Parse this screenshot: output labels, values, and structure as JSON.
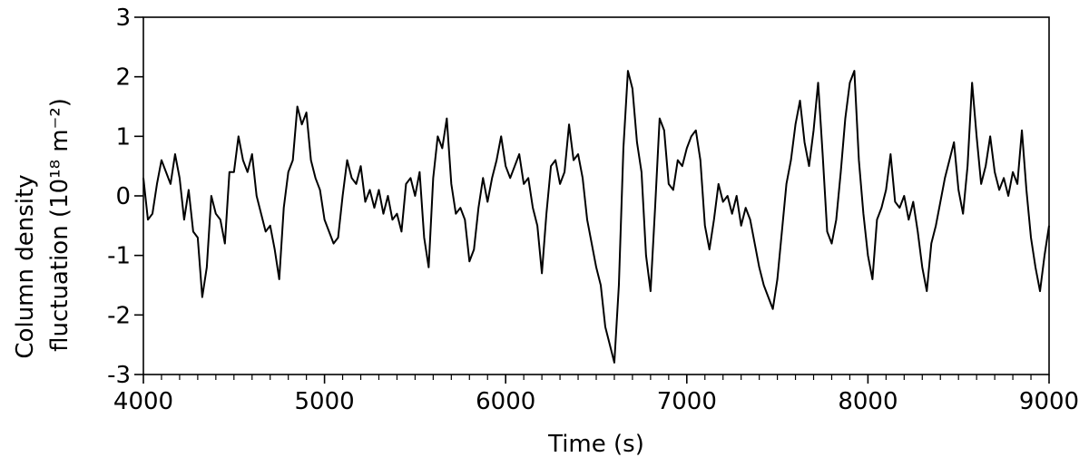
{
  "chart_data": {
    "type": "line",
    "x_label": "Time (s)",
    "y_label": [
      "Column density",
      "fluctuation (10¹⁸ m⁻²)"
    ],
    "xlim": [
      4000,
      9000
    ],
    "xticks": [
      4000,
      5000,
      6000,
      7000,
      8000,
      9000
    ],
    "xminorticks": [
      4100,
      4200,
      4300,
      4400,
      4500,
      4600,
      4700,
      4800,
      4900,
      5100,
      5200,
      5300,
      5400,
      5500,
      5600,
      5700,
      5800,
      5900,
      6100,
      6200,
      6300,
      6400,
      6500,
      6600,
      6700,
      6800,
      6900,
      7100,
      7200,
      7300,
      7400,
      7500,
      7600,
      7700,
      7800,
      7900,
      8100,
      8200,
      8300,
      8400,
      8500,
      8600,
      8700,
      8800,
      8900
    ],
    "ylim": [
      -3,
      3
    ],
    "yticks": [
      -3,
      -2,
      -1,
      0,
      1,
      2,
      3
    ],
    "grid": false,
    "series": [
      {
        "color": "#000000",
        "x": [
          4000,
          4025,
          4050,
          4075,
          4100,
          4125,
          4150,
          4175,
          4200,
          4225,
          4250,
          4275,
          4300,
          4325,
          4350,
          4375,
          4400,
          4425,
          4450,
          4475,
          4500,
          4525,
          4550,
          4575,
          4600,
          4625,
          4650,
          4675,
          4700,
          4725,
          4750,
          4775,
          4800,
          4825,
          4850,
          4875,
          4900,
          4925,
          4950,
          4975,
          5000,
          5025,
          5050,
          5075,
          5100,
          5125,
          5150,
          5175,
          5200,
          5225,
          5250,
          5275,
          5300,
          5325,
          5350,
          5375,
          5400,
          5425,
          5450,
          5475,
          5500,
          5525,
          5550,
          5575,
          5600,
          5625,
          5650,
          5675,
          5700,
          5725,
          5750,
          5775,
          5800,
          5825,
          5850,
          5875,
          5900,
          5925,
          5950,
          5975,
          6000,
          6025,
          6050,
          6075,
          6100,
          6125,
          6150,
          6175,
          6200,
          6225,
          6250,
          6275,
          6300,
          6325,
          6350,
          6375,
          6400,
          6425,
          6450,
          6475,
          6500,
          6525,
          6550,
          6575,
          6600,
          6625,
          6650,
          6675,
          6700,
          6725,
          6750,
          6775,
          6800,
          6825,
          6850,
          6875,
          6900,
          6925,
          6950,
          6975,
          7000,
          7025,
          7050,
          7075,
          7100,
          7125,
          7150,
          7175,
          7200,
          7225,
          7250,
          7275,
          7300,
          7325,
          7350,
          7375,
          7400,
          7425,
          7450,
          7475,
          7500,
          7525,
          7550,
          7575,
          7600,
          7625,
          7650,
          7675,
          7700,
          7725,
          7750,
          7775,
          7800,
          7825,
          7850,
          7875,
          7900,
          7925,
          7950,
          7975,
          8000,
          8025,
          8050,
          8075,
          8100,
          8125,
          8150,
          8175,
          8200,
          8225,
          8250,
          8275,
          8300,
          8325,
          8350,
          8375,
          8400,
          8425,
          8450,
          8475,
          8500,
          8525,
          8550,
          8575,
          8600,
          8625,
          8650,
          8675,
          8700,
          8725,
          8750,
          8775,
          8800,
          8825,
          8850,
          8875,
          8900,
          8925,
          8950,
          8975,
          9000
        ],
        "values": [
          0.3,
          -0.4,
          -0.3,
          0.2,
          0.6,
          0.4,
          0.2,
          0.7,
          0.3,
          -0.4,
          0.1,
          -0.6,
          -0.7,
          -1.7,
          -1.2,
          0.0,
          -0.3,
          -0.4,
          -0.8,
          0.4,
          0.4,
          1.0,
          0.6,
          0.4,
          0.7,
          0.0,
          -0.3,
          -0.6,
          -0.5,
          -0.9,
          -1.4,
          -0.2,
          0.4,
          0.6,
          1.5,
          1.2,
          1.4,
          0.6,
          0.3,
          0.1,
          -0.4,
          -0.6,
          -0.8,
          -0.7,
          0.0,
          0.6,
          0.3,
          0.2,
          0.5,
          -0.1,
          0.1,
          -0.2,
          0.1,
          -0.3,
          0.0,
          -0.4,
          -0.3,
          -0.6,
          0.2,
          0.3,
          0.0,
          0.4,
          -0.7,
          -1.2,
          0.3,
          1.0,
          0.8,
          1.3,
          0.2,
          -0.3,
          -0.2,
          -0.4,
          -1.1,
          -0.9,
          -0.2,
          0.3,
          -0.1,
          0.3,
          0.6,
          1.0,
          0.5,
          0.3,
          0.5,
          0.7,
          0.2,
          0.3,
          -0.2,
          -0.5,
          -1.3,
          -0.3,
          0.5,
          0.6,
          0.2,
          0.4,
          1.2,
          0.6,
          0.7,
          0.3,
          -0.4,
          -0.8,
          -1.2,
          -1.5,
          -2.2,
          -2.5,
          -2.8,
          -1.5,
          0.8,
          2.1,
          1.8,
          0.9,
          0.4,
          -1.0,
          -1.6,
          -0.2,
          1.3,
          1.1,
          0.2,
          0.1,
          0.6,
          0.5,
          0.8,
          1.0,
          1.1,
          0.6,
          -0.5,
          -0.9,
          -0.4,
          0.2,
          -0.1,
          0.0,
          -0.3,
          0.0,
          -0.5,
          -0.2,
          -0.4,
          -0.8,
          -1.2,
          -1.5,
          -1.7,
          -1.9,
          -1.4,
          -0.6,
          0.2,
          0.6,
          1.2,
          1.6,
          0.9,
          0.5,
          1.1,
          1.9,
          0.7,
          -0.6,
          -0.8,
          -0.4,
          0.4,
          1.3,
          1.9,
          2.1,
          0.6,
          -0.3,
          -1.0,
          -1.4,
          -0.4,
          -0.2,
          0.1,
          0.7,
          -0.1,
          -0.2,
          0.0,
          -0.4,
          -0.1,
          -0.6,
          -1.2,
          -1.6,
          -0.8,
          -0.5,
          -0.1,
          0.3,
          0.6,
          0.9,
          0.1,
          -0.3,
          0.5,
          1.9,
          1.0,
          0.2,
          0.5,
          1.0,
          0.4,
          0.1,
          0.3,
          0.0,
          0.4,
          0.2,
          1.1,
          0.1,
          -0.7,
          -1.2,
          -1.6,
          -1.0,
          -0.5
        ]
      }
    ]
  }
}
